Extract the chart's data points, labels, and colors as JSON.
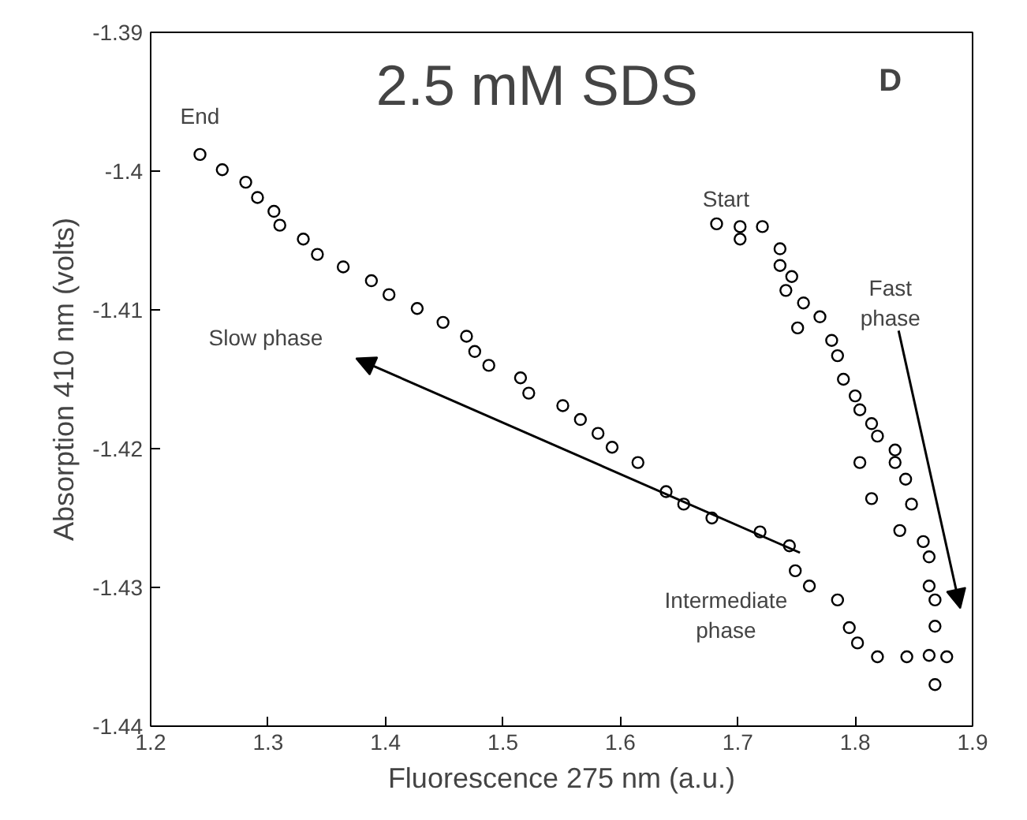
{
  "chart_data": {
    "type": "scatter",
    "title": "2.5 mM SDS",
    "xlabel": "Fluorescence 275 nm (a.u.)",
    "ylabel": "Absorption 410 nm (volts)",
    "xlim": [
      1.2,
      1.9
    ],
    "ylim": [
      -1.44,
      -1.39
    ],
    "xticks": [
      1.2,
      1.3,
      1.4,
      1.5,
      1.6,
      1.7,
      1.8,
      1.9
    ],
    "yticks": [
      -1.44,
      -1.43,
      -1.42,
      -1.41,
      -1.4,
      -1.39
    ],
    "grid": false,
    "marker": "circle",
    "series": [
      {
        "color": "#000000",
        "x": [
          1.242,
          1.261,
          1.281,
          1.291,
          1.305,
          1.31,
          1.33,
          1.342,
          1.364,
          1.388,
          1.403,
          1.427,
          1.449,
          1.469,
          1.476,
          1.488,
          1.515,
          1.522,
          1.551,
          1.566,
          1.581,
          1.593,
          1.615,
          1.639,
          1.654,
          1.678,
          1.719,
          1.744,
          1.749,
          1.761,
          1.785,
          1.795,
          1.802,
          1.819,
          1.844
        ],
        "values": [
          -1.3988,
          -1.3999,
          -1.4008,
          -1.4019,
          -1.4029,
          -1.4039,
          -1.4049,
          -1.406,
          -1.4069,
          -1.4079,
          -1.4089,
          -1.4099,
          -1.4109,
          -1.4119,
          -1.413,
          -1.414,
          -1.4149,
          -1.416,
          -1.4169,
          -1.4179,
          -1.4189,
          -1.4199,
          -1.421,
          -1.4231,
          -1.424,
          -1.425,
          -1.426,
          -1.427,
          -1.4288,
          -1.4299,
          -1.4309,
          -1.4329,
          -1.434,
          -1.435,
          -1.435
        ]
      },
      {
        "color": "#000000",
        "x": [
          1.682,
          1.702,
          1.721,
          1.702,
          1.736,
          1.736,
          1.746,
          1.741,
          1.756,
          1.77,
          1.751,
          1.78,
          1.785,
          1.79,
          1.8,
          1.804,
          1.814,
          1.819,
          1.834,
          1.834,
          1.804,
          1.843,
          1.814,
          1.848,
          1.838,
          1.858,
          1.863,
          1.863,
          1.868,
          1.868,
          1.863,
          1.868,
          1.878
        ],
        "values": [
          -1.4038,
          -1.404,
          -1.404,
          -1.4049,
          -1.4056,
          -1.4068,
          -1.4076,
          -1.4086,
          -1.4095,
          -1.4105,
          -1.4113,
          -1.4122,
          -1.4133,
          -1.415,
          -1.4162,
          -1.4172,
          -1.4182,
          -1.4191,
          -1.4201,
          -1.421,
          -1.421,
          -1.4222,
          -1.4236,
          -1.424,
          -1.4259,
          -1.4267,
          -1.4278,
          -1.4299,
          -1.4309,
          -1.4328,
          -1.4349,
          -1.437,
          -1.435
        ]
      }
    ],
    "annotations": [
      "End",
      "Start",
      "Slow phase",
      "Fast phase",
      "Intermediate phase",
      "D"
    ]
  }
}
